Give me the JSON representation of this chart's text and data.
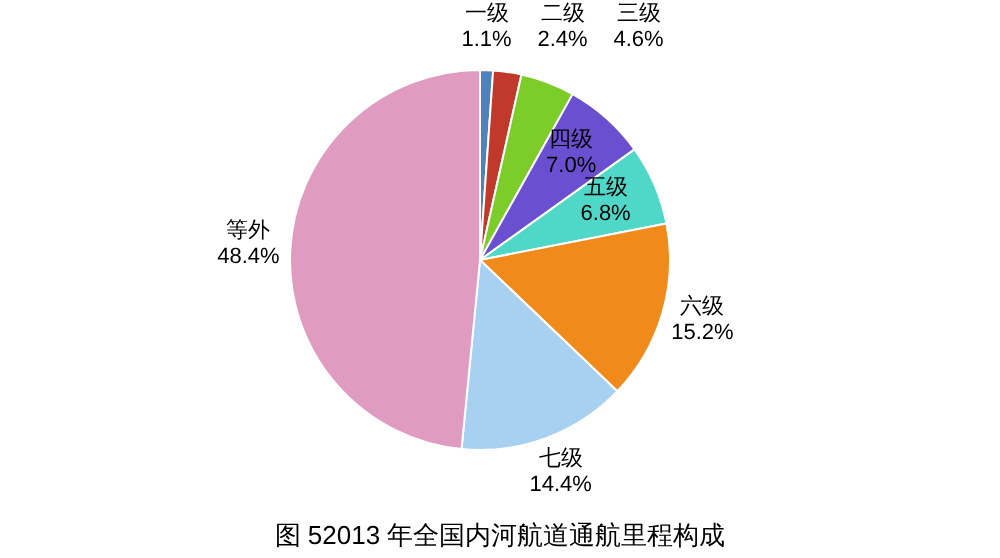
{
  "chart_data": {
    "type": "pie",
    "title": "图 52013 年全国内河航道通航里程构成",
    "categories": [
      "一级",
      "二级",
      "三级",
      "四级",
      "五级",
      "六级",
      "七级",
      "等外"
    ],
    "values": [
      1.1,
      2.4,
      4.6,
      7.0,
      6.8,
      15.2,
      14.4,
      48.4
    ],
    "colors": [
      "#4f81bd",
      "#c0392b",
      "#7ccc2a",
      "#6a4fd0",
      "#4fd8c8",
      "#f08a1a",
      "#a8d0f0",
      "#e09cc0"
    ],
    "value_labels": [
      "1.1%",
      "2.4%",
      "4.6%",
      "7.0%",
      "6.8%",
      "15.2%",
      "14.4%",
      "48.4%"
    ]
  }
}
